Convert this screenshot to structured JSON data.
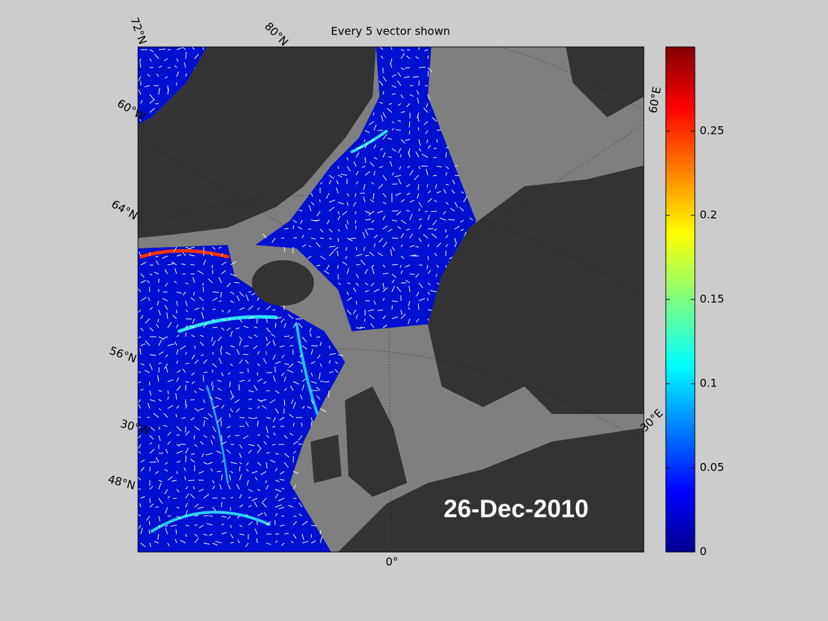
{
  "title": "Every 5 vector shown",
  "date": "26-Dec-2010",
  "latitude_labels": [
    "72°N",
    "80°N",
    "64°N",
    "56°N",
    "48°N"
  ],
  "longitude_labels": [
    "60°W",
    "30°W",
    "0°",
    "30°E",
    "60°E"
  ],
  "colorbar": {
    "lim": [
      0,
      0.3
    ],
    "ticks": [
      0,
      0.05,
      0.1,
      0.15,
      0.2,
      0.25
    ]
  }
}
